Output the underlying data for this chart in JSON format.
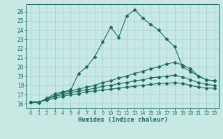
{
  "xlabel": "Humidex (Indice chaleur)",
  "bg_color": "#c8e8e4",
  "grid_color": "#a0ccc8",
  "line_color": "#1a6b5a",
  "xlim": [
    -0.5,
    23.5
  ],
  "ylim": [
    15.5,
    26.8
  ],
  "yticks": [
    16,
    17,
    18,
    19,
    20,
    21,
    22,
    23,
    24,
    25,
    26
  ],
  "xticks": [
    0,
    1,
    2,
    3,
    4,
    5,
    6,
    7,
    8,
    9,
    10,
    11,
    12,
    13,
    14,
    15,
    16,
    17,
    18,
    19,
    20,
    21,
    22,
    23
  ],
  "line1_x": [
    0,
    1,
    2,
    3,
    4,
    5,
    6,
    7,
    8,
    9,
    10,
    11,
    12,
    13,
    14,
    15,
    16,
    17,
    18,
    19,
    20,
    21,
    22,
    23
  ],
  "line1_y": [
    16.2,
    16.1,
    16.6,
    17.1,
    17.3,
    17.5,
    19.3,
    20.0,
    21.1,
    22.7,
    24.3,
    23.2,
    25.5,
    26.2,
    25.3,
    24.6,
    24.0,
    23.0,
    22.2,
    20.0,
    19.5,
    19.0,
    18.6,
    18.5
  ],
  "line2_x": [
    0,
    1,
    2,
    3,
    4,
    5,
    6,
    7,
    8,
    9,
    10,
    11,
    12,
    13,
    14,
    15,
    16,
    17,
    18,
    19,
    20,
    21,
    22,
    23
  ],
  "line2_y": [
    16.2,
    16.2,
    16.5,
    16.9,
    17.2,
    17.4,
    17.6,
    17.8,
    18.0,
    18.3,
    18.5,
    18.8,
    19.0,
    19.3,
    19.5,
    19.8,
    20.0,
    20.3,
    20.5,
    20.2,
    19.8,
    19.0,
    18.6,
    18.5
  ],
  "line3_x": [
    0,
    1,
    2,
    3,
    4,
    5,
    6,
    7,
    8,
    9,
    10,
    11,
    12,
    13,
    14,
    15,
    16,
    17,
    18,
    19,
    20,
    21,
    22,
    23
  ],
  "line3_y": [
    16.2,
    16.2,
    16.5,
    16.8,
    17.0,
    17.2,
    17.4,
    17.5,
    17.7,
    17.9,
    18.0,
    18.2,
    18.3,
    18.5,
    18.6,
    18.8,
    18.9,
    19.0,
    19.1,
    18.9,
    18.6,
    18.3,
    18.1,
    18.0
  ],
  "line4_x": [
    0,
    1,
    2,
    3,
    4,
    5,
    6,
    7,
    8,
    9,
    10,
    11,
    12,
    13,
    14,
    15,
    16,
    17,
    18,
    19,
    20,
    21,
    22,
    23
  ],
  "line4_y": [
    16.2,
    16.2,
    16.4,
    16.6,
    16.8,
    17.0,
    17.1,
    17.3,
    17.4,
    17.5,
    17.6,
    17.7,
    17.8,
    17.9,
    18.0,
    18.1,
    18.2,
    18.2,
    18.3,
    18.2,
    18.0,
    17.8,
    17.7,
    17.7
  ]
}
